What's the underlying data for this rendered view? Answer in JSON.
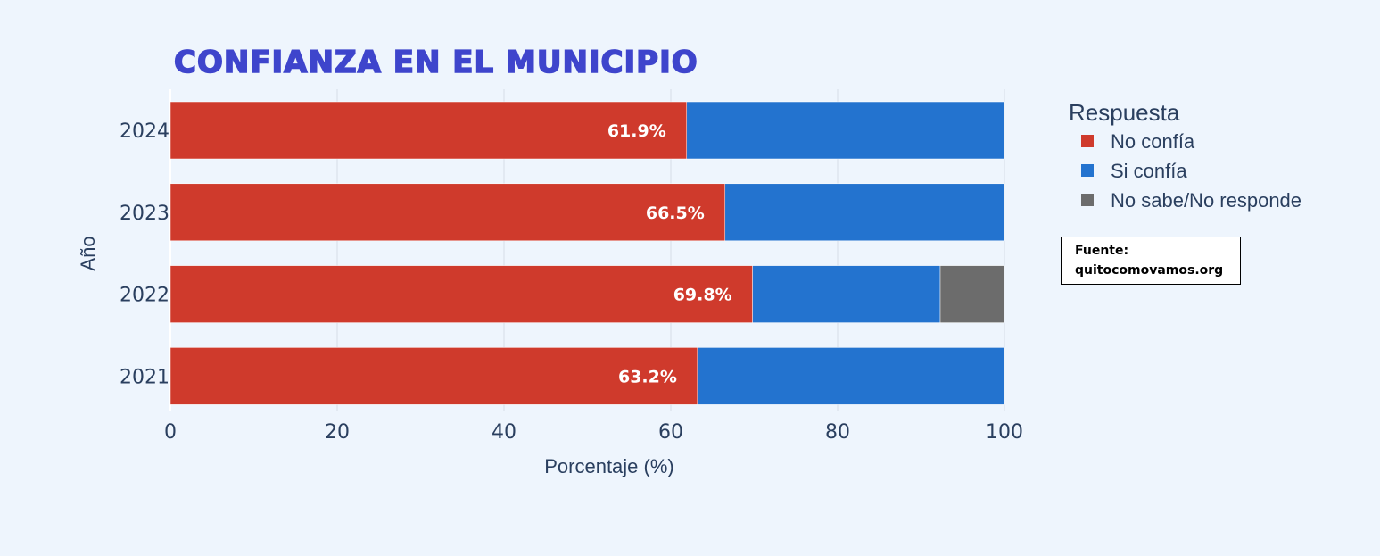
{
  "chart_data": {
    "type": "bar",
    "orientation": "horizontal",
    "stacked": true,
    "title": "CONFIANZA EN EL MUNICIPIO",
    "xlabel": "Porcentaje (%)",
    "ylabel": "Año",
    "xlim": [
      0,
      100
    ],
    "xticks": [
      "0",
      "20",
      "40",
      "60",
      "80",
      "100"
    ],
    "grid": true,
    "categories": [
      "2024",
      "2023",
      "2022",
      "2021"
    ],
    "series": [
      {
        "name": "No confía",
        "color": "#cf3a2c",
        "values": [
          61.9,
          66.5,
          69.8,
          63.2
        ],
        "labels": [
          "61.9%",
          "66.5%",
          "69.8%",
          "63.2%"
        ]
      },
      {
        "name": "Si confía",
        "color": "#2373cf",
        "values": [
          38.1,
          33.5,
          22.5,
          36.8
        ]
      },
      {
        "name": "No sabe/No responde",
        "color": "#6c6c6c",
        "values": [
          0,
          0,
          7.7,
          0
        ]
      }
    ],
    "legend": {
      "title": "Respuesta",
      "placement": "right"
    }
  },
  "source": {
    "line1": "Fuente:",
    "line2": "quitocomovamos.org"
  }
}
